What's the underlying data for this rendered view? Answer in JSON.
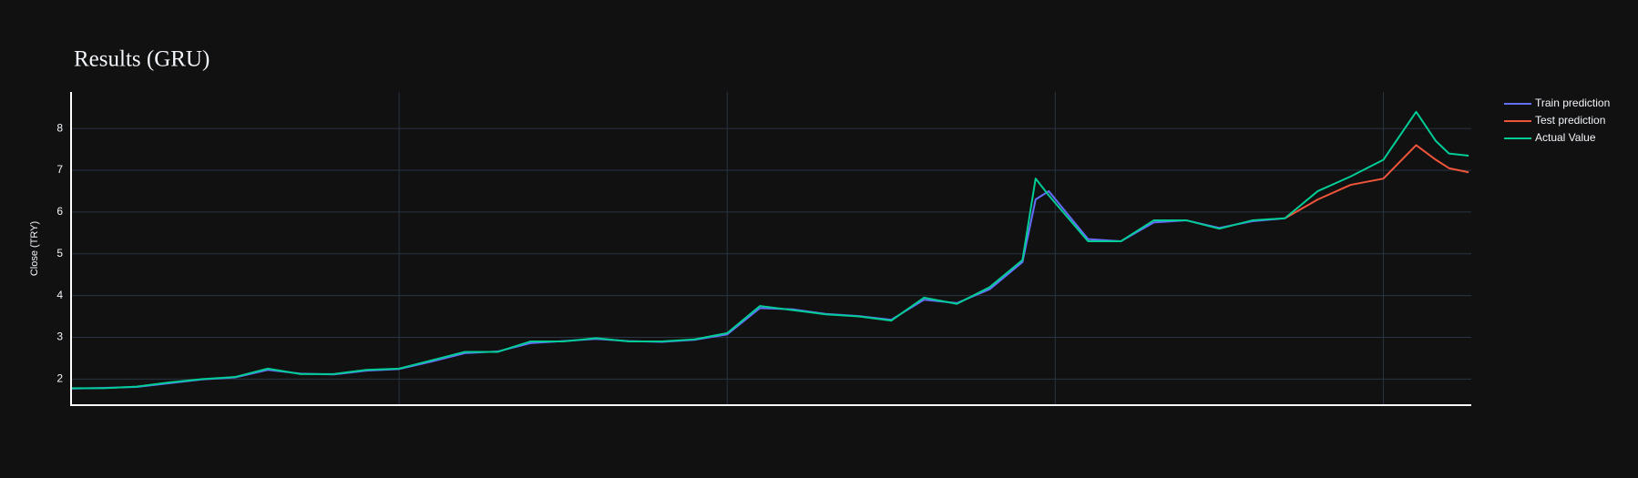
{
  "chart_data": {
    "type": "line",
    "title": "Results (GRU)",
    "y_label": "Close (TRY)",
    "x": [
      0,
      50,
      100,
      150,
      200,
      250,
      300,
      350,
      400,
      450,
      500,
      550,
      600,
      650,
      700,
      750,
      800,
      850,
      900,
      950,
      1000,
      1050,
      1100,
      1150,
      1200,
      1250,
      1300,
      1350,
      1400,
      1450,
      1470,
      1490,
      1550,
      1600,
      1650,
      1700,
      1750,
      1800,
      1850,
      1900,
      1950,
      2000,
      2050,
      2080,
      2100,
      2130
    ],
    "series": [
      {
        "name": "Train prediction",
        "color": "#636efa",
        "values": [
          1.77,
          1.79,
          1.81,
          1.9,
          1.99,
          2.04,
          2.22,
          2.13,
          2.11,
          2.2,
          2.24,
          2.42,
          2.62,
          2.66,
          2.86,
          2.91,
          2.96,
          2.91,
          2.89,
          2.94,
          3.07,
          3.7,
          3.67,
          3.56,
          3.51,
          3.42,
          3.9,
          3.82,
          4.15,
          4.8,
          6.3,
          6.5,
          5.35,
          5.3,
          5.75,
          5.8,
          5.62,
          5.78,
          5.85,
          null,
          null,
          null,
          null,
          null,
          null,
          null
        ]
      },
      {
        "name": "Test prediction",
        "color": "#ef553b",
        "values": [
          null,
          null,
          null,
          null,
          null,
          null,
          null,
          null,
          null,
          null,
          null,
          null,
          null,
          null,
          null,
          null,
          null,
          null,
          null,
          null,
          null,
          null,
          null,
          null,
          null,
          null,
          null,
          null,
          null,
          null,
          null,
          null,
          null,
          null,
          null,
          null,
          null,
          null,
          5.85,
          6.3,
          6.65,
          6.8,
          7.6,
          7.25,
          7.05,
          6.95
        ]
      },
      {
        "name": "Actual Value",
        "color": "#00cc96",
        "values": [
          1.78,
          1.78,
          1.82,
          1.92,
          2.0,
          2.05,
          2.25,
          2.12,
          2.12,
          2.22,
          2.25,
          2.45,
          2.65,
          2.65,
          2.9,
          2.9,
          2.98,
          2.9,
          2.9,
          2.95,
          3.1,
          3.75,
          3.65,
          3.55,
          3.5,
          3.4,
          3.95,
          3.8,
          4.2,
          4.85,
          6.8,
          6.4,
          5.3,
          5.3,
          5.8,
          5.8,
          5.6,
          5.8,
          5.85,
          6.5,
          6.85,
          7.25,
          8.4,
          7.7,
          7.4,
          7.35
        ]
      }
    ],
    "xlim": [
      0,
      2134
    ],
    "xticks": [
      500,
      1000,
      1500,
      2000
    ],
    "ylim": [
      1.375,
      8.875
    ],
    "yticks": [
      2,
      3,
      4,
      5,
      6,
      7,
      8
    ],
    "grid": true
  }
}
